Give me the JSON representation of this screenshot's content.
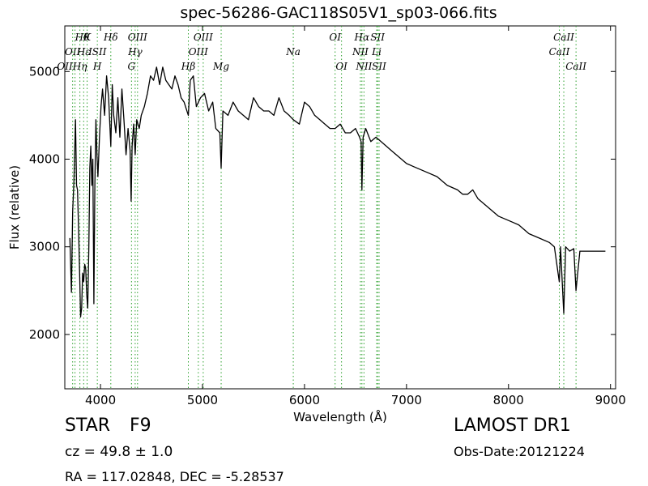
{
  "title": "spec-56286-GAC118S05V1_sp03-066.fits",
  "footer": {
    "obj_type": "STAR",
    "obj_class": "F9",
    "survey": "LAMOST DR1",
    "cz": "cz = 49.8 ± 1.0",
    "obs_date": "Obs-Date:20121224",
    "radec": "RA = 117.02848, DEC = -5.28537"
  },
  "chart_data": {
    "type": "line",
    "title": "spec-56286-GAC118S05V1_sp03-066.fits",
    "xlabel": "Wavelength (Å)",
    "ylabel": "Flux (relative)",
    "xlim": [
      3650,
      9050
    ],
    "ylim": [
      1380,
      5520
    ],
    "xticks": [
      4000,
      5000,
      6000,
      7000,
      8000,
      9000
    ],
    "yticks": [
      2000,
      3000,
      4000,
      5000
    ],
    "grid": false,
    "line_color": "#000000",
    "marker_color": "#2ca02c",
    "series": [
      {
        "x": [
          3700,
          3715,
          3727,
          3740,
          3755,
          3765,
          3775,
          3785,
          3795,
          3805,
          3815,
          3825,
          3835,
          3845,
          3855,
          3865,
          3875,
          3885,
          3895,
          3905,
          3915,
          3925,
          3935,
          3945,
          3955,
          3965,
          3975,
          3990,
          4005,
          4020,
          4040,
          4060,
          4080,
          4101,
          4115,
          4130,
          4150,
          4170,
          4190,
          4210,
          4230,
          4250,
          4270,
          4290,
          4300,
          4310,
          4325,
          4340,
          4355,
          4380,
          4400,
          4430,
          4460,
          4490,
          4520,
          4550,
          4580,
          4610,
          4640,
          4670,
          4700,
          4730,
          4760,
          4790,
          4820,
          4861,
          4880,
          4910,
          4940,
          4980,
          5020,
          5060,
          5100,
          5130,
          5170,
          5183,
          5200,
          5250,
          5300,
          5350,
          5400,
          5450,
          5500,
          5550,
          5600,
          5650,
          5700,
          5750,
          5800,
          5850,
          5890,
          5950,
          6000,
          6050,
          6100,
          6150,
          6200,
          6250,
          6300,
          6350,
          6400,
          6450,
          6500,
          6540,
          6555,
          6563,
          6575,
          6600,
          6650,
          6700,
          6750,
          6800,
          6850,
          6900,
          6950,
          7000,
          7100,
          7200,
          7300,
          7400,
          7500,
          7550,
          7600,
          7650,
          7700,
          7800,
          7900,
          8000,
          8100,
          8200,
          8300,
          8400,
          8450,
          8498,
          8510,
          8542,
          8560,
          8600,
          8640,
          8662,
          8700,
          8750,
          8800,
          8850,
          8900,
          8950
        ],
        "y": [
          3100,
          2480,
          3400,
          3750,
          4450,
          3700,
          3650,
          3200,
          2700,
          2200,
          2300,
          2700,
          2600,
          2800,
          2750,
          2450,
          2300,
          2950,
          3900,
          4150,
          3700,
          4000,
          2350,
          3700,
          4450,
          4050,
          3800,
          4250,
          4600,
          4800,
          4500,
          4950,
          4700,
          4150,
          4850,
          4500,
          4300,
          4700,
          4250,
          4800,
          4450,
          4050,
          4350,
          4100,
          3520,
          4150,
          4400,
          4050,
          4450,
          4350,
          4500,
          4600,
          4750,
          4950,
          4900,
          5050,
          4850,
          5050,
          4900,
          4850,
          4800,
          4950,
          4850,
          4700,
          4650,
          4500,
          4900,
          4950,
          4600,
          4700,
          4750,
          4550,
          4650,
          4350,
          4300,
          3900,
          4550,
          4500,
          4650,
          4550,
          4500,
          4450,
          4700,
          4600,
          4550,
          4550,
          4500,
          4700,
          4550,
          4500,
          4450,
          4400,
          4650,
          4600,
          4500,
          4450,
          4400,
          4350,
          4350,
          4400,
          4300,
          4300,
          4350,
          4250,
          4200,
          3650,
          4250,
          4350,
          4200,
          4250,
          4200,
          4150,
          4100,
          4050,
          4000,
          3950,
          3900,
          3850,
          3800,
          3700,
          3650,
          3600,
          3600,
          3650,
          3550,
          3450,
          3350,
          3300,
          3250,
          3150,
          3100,
          3050,
          3000,
          2600,
          3000,
          2240,
          3000,
          2950,
          2980,
          2500,
          2950,
          2950,
          2950,
          2950,
          2950,
          2950
        ]
      }
    ],
    "line_labels": [
      {
        "wave": 3727,
        "text": "OII",
        "row": 1,
        "anchor": "middle"
      },
      {
        "wave": 3727,
        "text": "OII",
        "row": 2,
        "anchor": "end"
      },
      {
        "wave": 3750,
        "text": "Hθ",
        "row": 0,
        "anchor": "start"
      },
      {
        "wave": 3798,
        "text": "Hη",
        "row": 2,
        "anchor": "middle"
      },
      {
        "wave": 3835,
        "text": "Hε",
        "row": 1,
        "anchor": "middle"
      },
      {
        "wave": 3869,
        "text": "K",
        "row": 0,
        "anchor": "middle"
      },
      {
        "wave": 3969,
        "text": "H",
        "row": 2,
        "anchor": "middle"
      },
      {
        "wave": 3970,
        "text": "ISII",
        "row": 1,
        "anchor": "middle"
      },
      {
        "wave": 4101,
        "text": "Hδ",
        "row": 0,
        "anchor": "middle"
      },
      {
        "wave": 4304,
        "text": "G",
        "row": 2,
        "anchor": "middle"
      },
      {
        "wave": 4340,
        "text": "Hγ",
        "row": 1,
        "anchor": "middle"
      },
      {
        "wave": 4363,
        "text": "OIII",
        "row": 0,
        "anchor": "middle"
      },
      {
        "wave": 4861,
        "text": "Hβ",
        "row": 2,
        "anchor": "middle"
      },
      {
        "wave": 4959,
        "text": "OIII",
        "row": 1,
        "anchor": "middle"
      },
      {
        "wave": 5007,
        "text": "OIII",
        "row": 0,
        "anchor": "middle"
      },
      {
        "wave": 5183,
        "text": "Mg",
        "row": 2,
        "anchor": "middle"
      },
      {
        "wave": 5890,
        "text": "Na",
        "row": 1,
        "anchor": "middle"
      },
      {
        "wave": 6300,
        "text": "OI",
        "row": 0,
        "anchor": "middle"
      },
      {
        "wave": 6363,
        "text": "OI",
        "row": 2,
        "anchor": "middle"
      },
      {
        "wave": 6548,
        "text": "NII",
        "row": 1,
        "anchor": "middle"
      },
      {
        "wave": 6563,
        "text": "Hα",
        "row": 0,
        "anchor": "middle"
      },
      {
        "wave": 6583,
        "text": "NII",
        "row": 2,
        "anchor": "middle"
      },
      {
        "wave": 6708,
        "text": "Li",
        "row": 1,
        "anchor": "middle"
      },
      {
        "wave": 6716,
        "text": "SII",
        "row": 0,
        "anchor": "middle"
      },
      {
        "wave": 6731,
        "text": "SII",
        "row": 2,
        "anchor": "middle"
      },
      {
        "wave": 8498,
        "text": "CaII",
        "row": 1,
        "anchor": "middle"
      },
      {
        "wave": 8542,
        "text": "CaII",
        "row": 0,
        "anchor": "middle"
      },
      {
        "wave": 8662,
        "text": "CaII",
        "row": 2,
        "anchor": "middle"
      }
    ]
  }
}
